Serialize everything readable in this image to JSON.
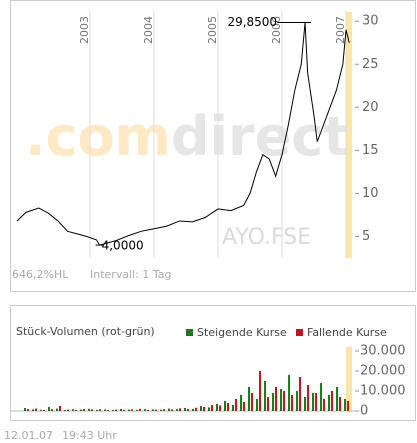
{
  "chart_data": [
    {
      "type": "line",
      "color": "#000000",
      "x": [
        2001.86,
        2002.0,
        2002.2,
        2002.35,
        2002.5,
        2002.65,
        2002.8,
        2002.95,
        2003.1,
        2003.15,
        2003.4,
        2003.6,
        2003.8,
        2004.0,
        2004.2,
        2004.4,
        2004.6,
        2004.8,
        2005.0,
        2005.2,
        2005.4,
        2005.5,
        2005.6,
        2005.7,
        2005.8,
        2005.9,
        2006.0,
        2006.1,
        2006.2,
        2006.3,
        2006.36,
        2006.4,
        2006.5,
        2006.55,
        2006.65,
        2006.75,
        2006.85,
        2006.95,
        2007.0,
        2007.05
      ],
      "values": [
        6.8,
        7.8,
        8.3,
        7.7,
        6.8,
        5.6,
        5.3,
        5.0,
        4.6,
        4.0,
        4.5,
        5.1,
        5.6,
        5.9,
        6.2,
        6.8,
        6.7,
        7.2,
        8.2,
        8.0,
        8.6,
        10.0,
        12.5,
        14.5,
        14.0,
        12.0,
        14.5,
        18.0,
        22.0,
        25.0,
        29.85,
        24.0,
        19.0,
        16.0,
        18.0,
        20.0,
        22.0,
        25.0,
        29.0,
        27.5
      ],
      "xlim": [
        2001.75,
        2007.14
      ],
      "xticks": [
        2003,
        2004,
        2005,
        2006,
        2007
      ],
      "ylim": [
        2.5,
        31.3
      ],
      "yticks": [
        5,
        10,
        15,
        20,
        25,
        30
      ],
      "annotations": [
        "29,8500",
        "4,0000"
      ],
      "info": [
        "646,2%HL",
        "Intervall: 1 Tag"
      ],
      "watermark": [
        ".com",
        "direct",
        "AYO.FSE"
      ]
    },
    {
      "type": "bar",
      "title": "Stück-Volumen (rot-grün)",
      "x": [
        2002.0,
        2002.125,
        2002.25,
        2002.375,
        2002.5,
        2002.625,
        2002.75,
        2002.875,
        2003.0,
        2003.125,
        2003.25,
        2003.375,
        2003.5,
        2003.625,
        2003.75,
        2003.875,
        2004.0,
        2004.125,
        2004.25,
        2004.375,
        2004.5,
        2004.625,
        2004.75,
        2004.875,
        2005.0,
        2005.125,
        2005.25,
        2005.375,
        2005.5,
        2005.625,
        2005.75,
        2005.875,
        2006.0,
        2006.125,
        2006.25,
        2006.375,
        2006.5,
        2006.625,
        2006.75,
        2006.875,
        2007.0
      ],
      "series": [
        {
          "name": "Steigende Kurse",
          "color": "#1a7a1a",
          "values": [
            1500,
            800,
            600,
            2000,
            1200,
            500,
            900,
            700,
            1100,
            600,
            800,
            500,
            1000,
            700,
            600,
            900,
            800,
            700,
            1200,
            900,
            1500,
            1000,
            2500,
            1800,
            3500,
            5000,
            3000,
            8000,
            12000,
            6000,
            15000,
            9000,
            11000,
            18000,
            10000,
            7000,
            9000,
            14000,
            8000,
            12000,
            6000
          ]
        },
        {
          "name": "Fallende Kurse",
          "color": "#c0141e",
          "values": [
            1000,
            1200,
            500,
            900,
            2500,
            700,
            600,
            1000,
            800,
            900,
            500,
            700,
            600,
            800,
            1100,
            600,
            700,
            900,
            800,
            1300,
            1000,
            1600,
            2000,
            3000,
            2800,
            4000,
            6000,
            4500,
            9000,
            20000,
            7000,
            12000,
            10000,
            8000,
            17000,
            13000,
            9000,
            6000,
            10000,
            7000,
            5000
          ]
        }
      ],
      "xlim": [
        2001.75,
        2007.14
      ],
      "ylim": [
        0,
        32000
      ],
      "yticks": [
        0,
        {
          "value": 10000,
          "label": "10.000"
        },
        {
          "value": 20000,
          "label": "20.000"
        },
        {
          "value": 30000,
          "label": "30.000"
        }
      ]
    }
  ],
  "footer": {
    "date": "12.01.07",
    "time": "19:43 Uhr"
  }
}
